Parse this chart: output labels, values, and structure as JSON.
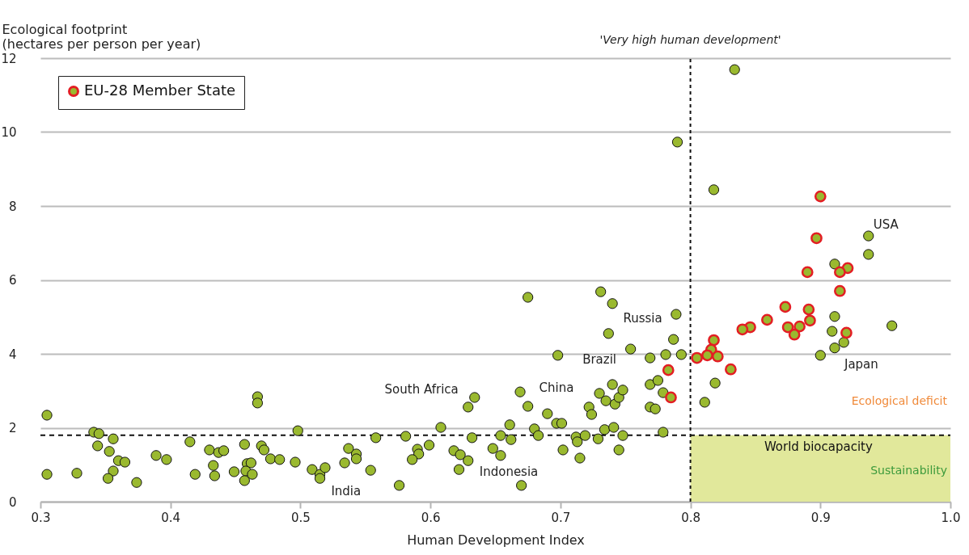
{
  "chart_data": {
    "type": "scatter",
    "xlabel": "Human Development Index",
    "ylabel": "Ecological footprint\n(hectares per person per year)",
    "xlim": [
      0.3,
      1.0
    ],
    "xticks": [
      0.3,
      0.4,
      0.5,
      0.6,
      0.7,
      0.8,
      0.9,
      {
        "value": 1.0,
        "label": "1.0"
      }
    ],
    "ylim": [
      0,
      12
    ],
    "yticks": [
      0,
      2,
      4,
      6,
      8,
      10,
      12
    ],
    "grid": "y",
    "legend": "top left",
    "marker": "circle",
    "series": [
      {
        "color": "#9ab92f",
        "x": [
          0.305,
          0.305,
          0.328,
          0.341,
          0.345,
          0.356,
          0.344,
          0.353,
          0.36,
          0.365,
          0.356,
          0.352,
          0.374,
          0.389,
          0.397,
          0.415,
          0.43,
          0.437,
          0.441,
          0.433,
          0.419,
          0.434,
          0.449,
          0.457,
          0.47,
          0.472,
          0.467,
          0.467,
          0.459,
          0.462,
          0.458,
          0.463,
          0.457,
          0.477,
          0.484,
          0.496,
          0.498,
          0.509,
          0.515,
          0.515,
          0.519,
          0.534,
          0.537,
          0.554,
          0.543,
          0.543,
          0.558,
          0.581,
          0.608,
          0.59,
          0.591,
          0.586,
          0.599,
          0.576,
          0.618,
          0.623,
          0.629,
          0.622,
          0.632,
          0.629,
          0.634,
          0.648,
          0.654,
          0.654,
          0.661,
          0.662,
          0.67,
          0.669,
          0.675,
          0.675,
          0.69,
          0.68,
          0.683,
          0.697,
          0.701,
          0.702,
          0.712,
          0.713,
          0.719,
          0.715,
          0.722,
          0.724,
          0.729,
          0.734,
          0.741,
          0.748,
          0.745,
          0.73,
          0.735,
          0.74,
          0.742,
          0.745,
          0.748,
          0.754,
          0.769,
          0.769,
          0.775,
          0.769,
          0.773,
          0.779,
          0.779,
          0.781,
          0.787,
          0.731,
          0.74,
          0.698,
          0.737,
          0.789,
          0.834,
          0.79,
          0.818,
          0.937,
          0.937,
          0.911,
          0.911,
          0.955,
          0.909,
          0.918,
          0.911,
          0.9,
          0.819,
          0.811,
          0.793
        ],
        "values": [
          2.34,
          0.74,
          0.77,
          1.88,
          1.84,
          1.7,
          1.51,
          1.36,
          1.11,
          1.07,
          0.83,
          0.63,
          0.52,
          1.25,
          1.14,
          1.62,
          1.4,
          1.33,
          1.38,
          0.98,
          0.74,
          0.7,
          0.81,
          1.55,
          1.51,
          1.4,
          2.84,
          2.67,
          1.03,
          1.05,
          0.83,
          0.74,
          0.57,
          1.16,
          1.14,
          1.07,
          1.92,
          0.87,
          0.74,
          0.63,
          0.92,
          1.05,
          1.44,
          0.85,
          1.29,
          1.16,
          1.73,
          1.77,
          2.01,
          1.42,
          1.29,
          1.14,
          1.53,
          0.44,
          1.38,
          1.27,
          1.11,
          0.87,
          1.73,
          2.56,
          2.82,
          1.44,
          1.25,
          1.79,
          2.08,
          1.68,
          0.44,
          2.97,
          2.58,
          5.53,
          2.38,
          1.97,
          1.79,
          2.12,
          2.12,
          1.4,
          1.75,
          1.62,
          1.79,
          1.18,
          2.56,
          2.36,
          1.7,
          1.95,
          2.01,
          1.79,
          1.4,
          2.93,
          2.73,
          3.17,
          2.64,
          2.82,
          3.02,
          4.13,
          3.89,
          3.17,
          3.28,
          2.56,
          2.51,
          1.88,
          2.95,
          3.98,
          4.39,
          5.68,
          5.36,
          3.96,
          4.55,
          5.07,
          11.69,
          9.73,
          8.44,
          7.19,
          6.69,
          6.43,
          5.01,
          4.76,
          4.61,
          4.31,
          4.16,
          3.96,
          3.21,
          2.69,
          3.98
        ]
      },
      {
        "name": "EU-28 Member State",
        "color": "#e31e24",
        "x": [
          0.783,
          0.785,
          0.9,
          0.897,
          0.921,
          0.915,
          0.89,
          0.915,
          0.873,
          0.891,
          0.859,
          0.846,
          0.84,
          0.875,
          0.884,
          0.88,
          0.892,
          0.92,
          0.818,
          0.816,
          0.813,
          0.821,
          0.805,
          0.831
        ],
        "values": [
          3.56,
          2.82,
          8.26,
          7.13,
          6.32,
          6.21,
          6.21,
          5.7,
          5.27,
          5.2,
          4.92,
          4.72,
          4.66,
          4.72,
          4.74,
          4.52,
          4.9,
          4.57,
          4.37,
          4.11,
          3.96,
          3.93,
          3.89,
          3.58
        ]
      }
    ],
    "ref_lines": [
      {
        "axis": "y",
        "value": 1.8,
        "label": "World biocapacity",
        "line_style": "dashed"
      },
      {
        "axis": "x",
        "value": 0.8,
        "label": "'Very high human development'",
        "line_style": "dotted"
      }
    ],
    "bands": [
      {
        "axis": "y",
        "from": 0,
        "to": 1.8,
        "color": "#e1e89b"
      }
    ],
    "annotations": [
      {
        "text": "USA",
        "x": 0.937,
        "y": 7.19
      },
      {
        "text": "Japan",
        "x": 0.911,
        "y": 4.16
      },
      {
        "text": "Russia",
        "x": 0.787,
        "y": 4.39
      },
      {
        "text": "Brazil",
        "x": 0.73,
        "y": 2.93
      },
      {
        "text": "China",
        "x": 0.697,
        "y": 2.12
      },
      {
        "text": "South Africa",
        "x": 0.629,
        "y": 2.56
      },
      {
        "text": "Indonesia",
        "x": 0.629,
        "y": 1.11
      },
      {
        "text": "India",
        "x": 0.554,
        "y": 0.85
      },
      "Ecological deficit",
      "Sustainability"
    ]
  }
}
